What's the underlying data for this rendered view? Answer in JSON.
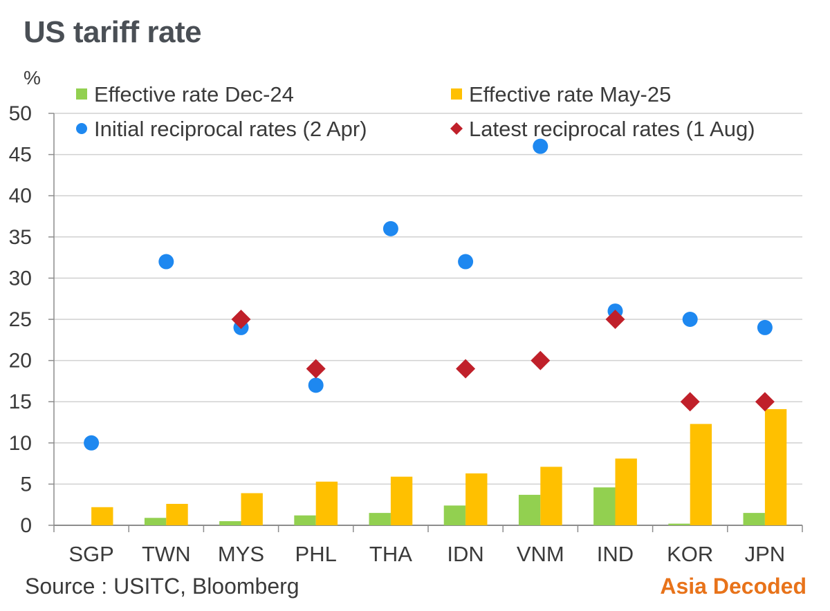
{
  "title": "US tariff rate",
  "source": "Source : USITC, Bloomberg",
  "brand": "Asia Decoded",
  "colors": {
    "dec24": "#92d050",
    "may25": "#ffc000",
    "initial": "#1e88f0",
    "latest": "#c0202a",
    "brand": "#e8731a",
    "grid": "#d0d0d0"
  },
  "chart_data": {
    "type": "bar",
    "title": "US tariff rate",
    "ylabel": "%",
    "ylim": [
      0,
      50
    ],
    "yticks": [
      0,
      5,
      10,
      15,
      20,
      25,
      30,
      35,
      40,
      45,
      50
    ],
    "grid": true,
    "legend_position": "top",
    "categories": [
      "SGP",
      "TWN",
      "MYS",
      "PHL",
      "THA",
      "IDN",
      "VNM",
      "IND",
      "KOR",
      "JPN"
    ],
    "series": [
      {
        "name": "Effective rate Dec-24",
        "kind": "bar",
        "color": "#92d050",
        "values": [
          0.0,
          0.9,
          0.5,
          1.2,
          1.5,
          2.4,
          3.7,
          4.6,
          0.2,
          1.5
        ]
      },
      {
        "name": "Effective rate May-25",
        "kind": "bar",
        "color": "#ffc000",
        "values": [
          2.2,
          2.6,
          3.9,
          5.3,
          5.9,
          6.3,
          7.1,
          8.1,
          12.3,
          14.1
        ]
      },
      {
        "name": "Initial reciprocal rates (2 Apr)",
        "kind": "marker-circle",
        "color": "#1e88f0",
        "values": [
          10,
          32,
          24,
          17,
          36,
          32,
          46,
          26,
          25,
          24
        ]
      },
      {
        "name": "Latest reciprocal rates (1 Aug)",
        "kind": "marker-diamond",
        "color": "#c0202a",
        "values": [
          null,
          null,
          25,
          19,
          null,
          19,
          20,
          25,
          15,
          15
        ]
      }
    ]
  }
}
